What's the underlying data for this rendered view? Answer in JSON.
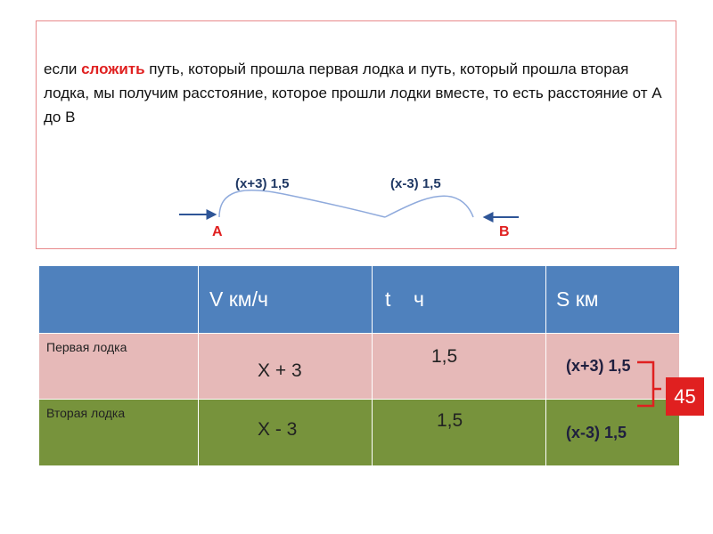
{
  "intro": {
    "before": "если ",
    "highlight": "сложить",
    "after": " путь, который прошла первая лодка и путь, который прошла вторая лодка, мы получим расстояние, которое прошли лодки вместе, то есть расстояние от А до В"
  },
  "diagram": {
    "arc1_label": "(х+3) 1,5",
    "arc2_label": "(х-3) 1,5",
    "point_a": "А",
    "point_b": "В",
    "colors": {
      "line": "#8faadc",
      "arrow": "#2e5597",
      "point": "#e02020"
    }
  },
  "table": {
    "headers": [
      "",
      "V км/ч",
      "t    ч",
      "S км"
    ],
    "rows": [
      {
        "name": "Первая лодка",
        "v": "Х + 3",
        "t": "1,5",
        "s": "(х+3) 1,5"
      },
      {
        "name": "Вторая лодка",
        "v": "Х - 3",
        "t": "1,5",
        "s": "(х-3) 1,5"
      }
    ],
    "colors": {
      "header": "#4f81bd",
      "row1": "#e6b9b8",
      "row2": "#77933c"
    }
  },
  "sum_badge": "45"
}
